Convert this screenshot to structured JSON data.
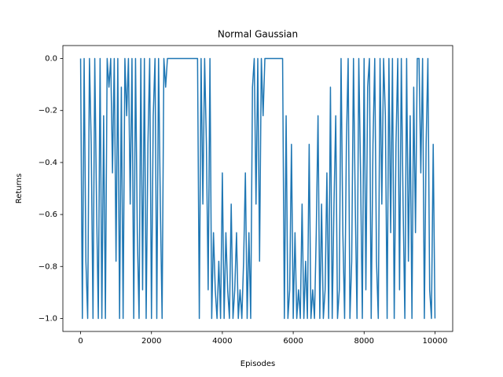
{
  "chart_data": {
    "type": "line",
    "title": "Normal Gaussian",
    "x_label": "Episodes",
    "y_label": "Returns",
    "color": "#1f77b4",
    "xlim": [
      -500,
      10500
    ],
    "ylim": [
      -1.05,
      0.05
    ],
    "xticks": [
      0,
      2000,
      4000,
      6000,
      8000,
      10000
    ],
    "yticks": [
      {
        "value": -1.0,
        "label": "−1.0"
      },
      {
        "value": -0.8,
        "label": "−0.8"
      },
      {
        "value": -0.6,
        "label": "−0.6"
      },
      {
        "value": -0.4,
        "label": "−0.4"
      },
      {
        "value": -0.2,
        "label": "−0.2"
      },
      {
        "value": 0.0,
        "label": "0.0"
      }
    ],
    "x": [
      0,
      50,
      100,
      150,
      200,
      250,
      300,
      350,
      400,
      450,
      500,
      550,
      600,
      650,
      700,
      750,
      800,
      850,
      900,
      950,
      1000,
      1050,
      1100,
      1150,
      1200,
      1250,
      1300,
      1350,
      1400,
      1450,
      1500,
      1550,
      1600,
      1650,
      1700,
      1750,
      1800,
      1850,
      1900,
      1950,
      2000,
      2050,
      2100,
      2150,
      2200,
      2250,
      2300,
      2350,
      2400,
      2450,
      2500,
      2550,
      2600,
      2650,
      2700,
      2750,
      2800,
      2850,
      2900,
      2950,
      3000,
      3050,
      3100,
      3150,
      3200,
      3250,
      3300,
      3350,
      3400,
      3450,
      3500,
      3550,
      3600,
      3650,
      3700,
      3750,
      3800,
      3850,
      3900,
      3950,
      4000,
      4050,
      4100,
      4150,
      4200,
      4250,
      4300,
      4350,
      4400,
      4450,
      4500,
      4550,
      4600,
      4650,
      4700,
      4750,
      4800,
      4850,
      4900,
      4950,
      5000,
      5050,
      5100,
      5150,
      5200,
      5250,
      5300,
      5350,
      5400,
      5450,
      5500,
      5550,
      5600,
      5650,
      5700,
      5750,
      5800,
      5850,
      5900,
      5950,
      6000,
      6050,
      6100,
      6150,
      6200,
      6250,
      6300,
      6350,
      6400,
      6450,
      6500,
      6550,
      6600,
      6650,
      6700,
      6750,
      6800,
      6850,
      6900,
      6950,
      7000,
      7050,
      7100,
      7150,
      7200,
      7250,
      7300,
      7350,
      7400,
      7450,
      7500,
      7550,
      7600,
      7650,
      7700,
      7750,
      7800,
      7850,
      7900,
      7950,
      8000,
      8050,
      8100,
      8150,
      8200,
      8250,
      8300,
      8350,
      8400,
      8450,
      8500,
      8550,
      8600,
      8650,
      8700,
      8750,
      8800,
      8850,
      8900,
      8950,
      9000,
      9050,
      9100,
      9150,
      9200,
      9250,
      9300,
      9350,
      9400,
      9450,
      9500,
      9550,
      9600,
      9650,
      9700,
      9750,
      9800,
      9850,
      9900,
      9950,
      10000
    ],
    "values": [
      0,
      -1,
      0,
      -0.78,
      -1,
      0,
      -0.33,
      -1,
      0,
      -0.56,
      -1,
      0,
      -1,
      -0.22,
      -1,
      0,
      -0.11,
      0,
      -0.44,
      0,
      -0.78,
      0,
      -1,
      -0.11,
      -1,
      0,
      -0.22,
      0,
      -0.56,
      0,
      -1,
      0,
      -0.67,
      -1,
      0,
      -0.89,
      0,
      -1,
      -0.33,
      0,
      -1,
      -0.22,
      0,
      -1,
      0,
      -0.56,
      -1,
      0,
      -0.11,
      0,
      0,
      0,
      0,
      0,
      0,
      0,
      0,
      0,
      0,
      0,
      0,
      0,
      0,
      0,
      0,
      0,
      0,
      -1,
      0,
      -0.56,
      0,
      -0.33,
      -0.89,
      0,
      -1,
      -0.67,
      -0.89,
      -1,
      -0.78,
      -1,
      -0.44,
      -1,
      -0.67,
      -0.89,
      -1,
      -0.56,
      -1,
      -0.89,
      -0.67,
      -1,
      -0.89,
      -1,
      -0.78,
      -0.44,
      -1,
      -0.67,
      -1,
      -0.11,
      0,
      -0.56,
      0,
      -0.78,
      0,
      -0.22,
      0,
      0,
      0,
      0,
      0,
      0,
      0,
      0,
      0,
      0,
      0,
      -1,
      -0.22,
      -1,
      -0.89,
      -0.33,
      -1,
      -0.67,
      -1,
      -0.89,
      -1,
      -0.56,
      -1,
      -0.78,
      -1,
      -0.33,
      -1,
      -0.89,
      -1,
      -0.67,
      -0.22,
      -1,
      -0.56,
      -1,
      -0.89,
      -0.44,
      -1,
      -0.11,
      -1,
      -0.56,
      -0.22,
      -1,
      -0.89,
      0,
      -0.67,
      -1,
      -0.33,
      0,
      -1,
      -0.78,
      0,
      -0.56,
      -1,
      0,
      -0.44,
      -1,
      0,
      -0.89,
      -0.11,
      0,
      -1,
      -0.33,
      0,
      -0.78,
      -1,
      0,
      -0.56,
      0,
      -0.22,
      -1,
      0,
      -0.67,
      0,
      -1,
      -0.33,
      0,
      -0.89,
      0,
      -0.56,
      -1,
      0,
      -0.78,
      -0.22,
      -1,
      -0.11,
      -0.67,
      0,
      0,
      -0.44,
      0,
      -1,
      -0.33,
      0,
      -0.89,
      -1,
      -0.33,
      -1
    ]
  }
}
